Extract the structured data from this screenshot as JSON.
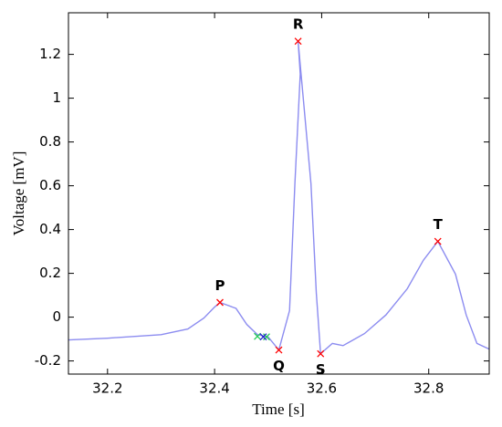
{
  "chart_data": {
    "type": "line",
    "xlabel": "Time [s]",
    "ylabel": "Voltage [mV]",
    "x": [
      32.127,
      32.2,
      32.3,
      32.35,
      32.38,
      32.4,
      32.41,
      32.44,
      32.46,
      32.48,
      32.5,
      32.52,
      32.54,
      32.55,
      32.56,
      32.556,
      32.58,
      32.59,
      32.598,
      32.62,
      32.64,
      32.68,
      32.72,
      32.76,
      32.79,
      32.817,
      32.85,
      32.87,
      32.89,
      32.913
    ],
    "series": [
      {
        "color": "#8c8cf0",
        "values": [
          -0.104,
          -0.096,
          -0.08,
          -0.054,
          -0.004,
          0.046,
          0.067,
          0.04,
          -0.033,
          -0.08,
          -0.09,
          -0.15,
          0.03,
          0.61,
          1.11,
          1.26,
          0.61,
          0.11,
          -0.167,
          -0.12,
          -0.13,
          -0.075,
          0.01,
          0.13,
          0.26,
          0.346,
          0.196,
          0.01,
          -0.12,
          -0.146
        ]
      }
    ],
    "points": [
      {
        "color": "#ff0000",
        "x": [
          32.41,
          32.52,
          32.556,
          32.598,
          32.817
        ],
        "y": [
          0.067,
          -0.15,
          1.26,
          -0.167,
          0.346
        ]
      },
      {
        "color": "#22cc55",
        "x": [
          32.48,
          32.497
        ],
        "y": [
          -0.088,
          -0.09
        ]
      },
      {
        "color": "#2222cc",
        "x": [
          32.491
        ],
        "y": [
          -0.09
        ]
      }
    ],
    "annotations": [
      {
        "text": "P",
        "x": 32.41,
        "y": 0.067,
        "position": "above"
      },
      {
        "text": "Q",
        "x": 32.52,
        "y": -0.15,
        "position": "below"
      },
      {
        "text": "R",
        "x": 32.556,
        "y": 1.26,
        "position": "above"
      },
      {
        "text": "S",
        "x": 32.598,
        "y": -0.167,
        "position": "below"
      },
      {
        "text": "T",
        "x": 32.817,
        "y": 0.346,
        "position": "above"
      }
    ],
    "xlim": [
      32.127,
      32.913
    ],
    "ylim": [
      -0.26,
      1.39
    ],
    "xticks": [
      32.2,
      32.4,
      32.6,
      32.8
    ],
    "yticks": [
      -0.2,
      0,
      0.2,
      0.4,
      0.6,
      0.8,
      1,
      1.2
    ]
  }
}
